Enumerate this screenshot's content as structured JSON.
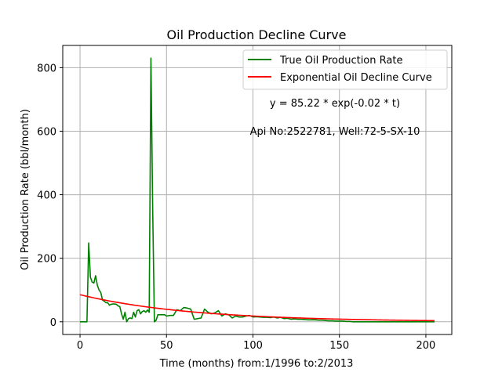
{
  "chart_data": {
    "type": "line",
    "title": "Oil Production Decline Curve",
    "xlabel": "Time (months) from:1/1996 to:2/2013",
    "ylabel": "Oil Production Rate (bbl/month)",
    "xlim": [
      -10,
      215
    ],
    "ylim": [
      -40,
      870
    ],
    "xticks": [
      0,
      50,
      100,
      150,
      200
    ],
    "yticks": [
      0,
      200,
      400,
      600,
      800
    ],
    "grid": true,
    "legend_position": "top-right",
    "annotations": [
      "y = 85.22 * exp(-0.02 * t)",
      "Api No:2522781, Well:72-5-SX-10"
    ],
    "series": [
      {
        "name": "True Oil Production Rate",
        "color": "#008000",
        "x": [
          0,
          1,
          2,
          3,
          4,
          5,
          6,
          7,
          8,
          9,
          10,
          11,
          12,
          13,
          14,
          15,
          16,
          17,
          18,
          19,
          20,
          21,
          22,
          23,
          24,
          25,
          26,
          27,
          28,
          29,
          30,
          31,
          32,
          33,
          34,
          35,
          36,
          37,
          38,
          39,
          40,
          41,
          42,
          43,
          44,
          45,
          46,
          47,
          48,
          49,
          50,
          52,
          54,
          56,
          58,
          60,
          62,
          64,
          66,
          68,
          70,
          72,
          74,
          76,
          78,
          80,
          82,
          84,
          86,
          88,
          90,
          92,
          94,
          96,
          98,
          100,
          102,
          104,
          106,
          108,
          110,
          112,
          114,
          116,
          118,
          120,
          122,
          124,
          126,
          128,
          130,
          132,
          134,
          136,
          138,
          140,
          142,
          144,
          146,
          148,
          150,
          152,
          154,
          156,
          158,
          160,
          165,
          170,
          175,
          180,
          185,
          190,
          195,
          200,
          205
        ],
        "y": [
          0,
          0,
          0,
          0,
          0,
          248,
          140,
          125,
          122,
          145,
          115,
          100,
          92,
          68,
          65,
          60,
          60,
          52,
          55,
          56,
          56,
          55,
          50,
          48,
          25,
          8,
          30,
          0,
          10,
          12,
          10,
          30,
          15,
          35,
          38,
          25,
          32,
          35,
          30,
          37,
          30,
          830,
          360,
          0,
          5,
          22,
          22,
          22,
          22,
          22,
          18,
          20,
          20,
          38,
          35,
          45,
          43,
          40,
          8,
          10,
          12,
          40,
          30,
          25,
          28,
          35,
          18,
          25,
          22,
          12,
          18,
          15,
          15,
          18,
          20,
          15,
          16,
          15,
          14,
          14,
          13,
          15,
          12,
          14,
          10,
          11,
          8,
          9,
          8,
          8,
          7,
          6,
          6,
          6,
          5,
          5,
          4,
          3,
          3,
          2,
          2,
          2,
          1,
          1,
          0,
          0,
          0,
          0,
          0,
          0,
          0,
          0,
          0,
          0,
          0
        ]
      },
      {
        "name": "Exponential Oil Decline Curve",
        "color": "#ff0000",
        "a": 85.22,
        "b": -0.0155,
        "t_range": [
          0,
          205
        ]
      }
    ]
  }
}
